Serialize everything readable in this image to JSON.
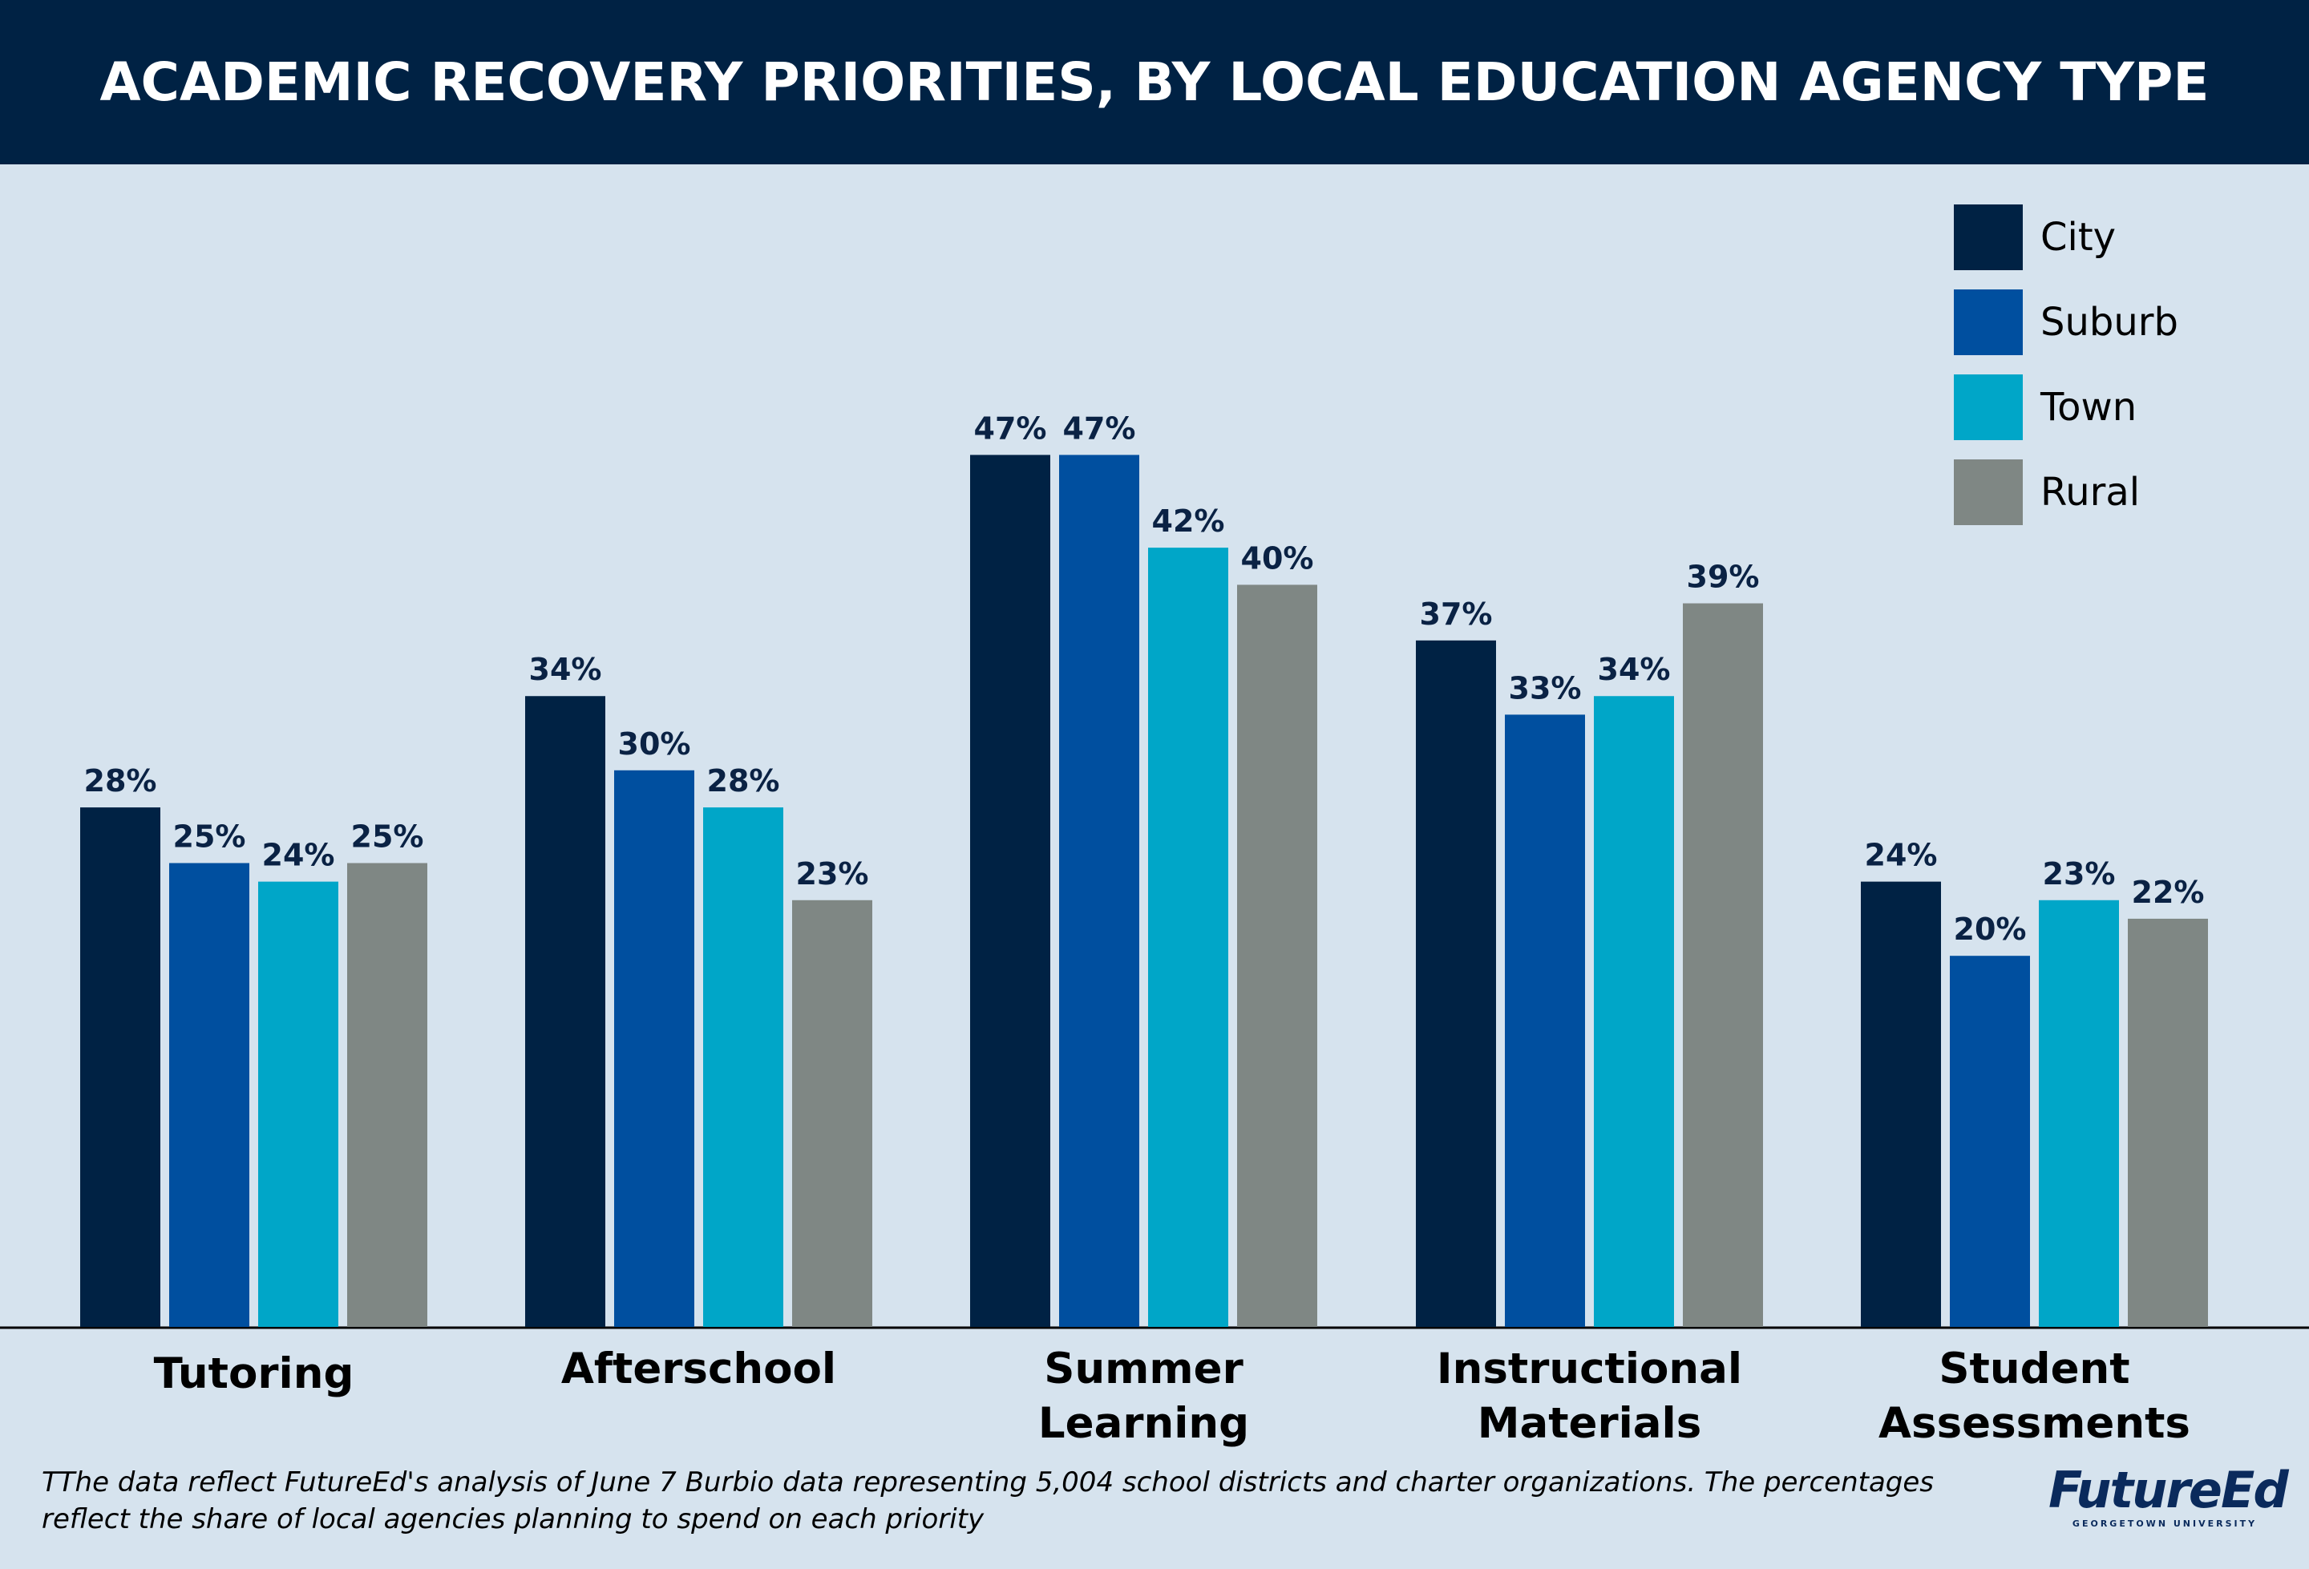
{
  "colors": {
    "background": "#d6e3ee",
    "header": "#002244",
    "city": "#002244",
    "suburb": "#004f9f",
    "town": "#00a6c8",
    "rural": "#7f8784",
    "label_text": "#0a2244"
  },
  "chart_data": {
    "type": "bar",
    "title": "ACADEMIC RECOVERY PRIORITIES, BY LOCAL EDUCATION AGENCY TYPE",
    "xlabel": "",
    "ylabel": "",
    "ylim": [
      0,
      50
    ],
    "grid": false,
    "legend_position": "top-right",
    "categories": [
      [
        "Tutoring"
      ],
      [
        "Afterschool"
      ],
      [
        "Summer",
        "Learning"
      ],
      [
        "Instructional",
        "Materials"
      ],
      [
        "Student",
        "Assessments"
      ]
    ],
    "series": [
      {
        "name": "City",
        "color": "#002244",
        "values": [
          28,
          34,
          47,
          37,
          24
        ],
        "labels": [
          "28%",
          "34%",
          "47%",
          "37%",
          "24%"
        ]
      },
      {
        "name": "Suburb",
        "color": "#004f9f",
        "values": [
          25,
          30,
          47,
          33,
          20
        ],
        "labels": [
          "25%",
          "30%",
          "47%",
          "33%",
          "20%"
        ]
      },
      {
        "name": "Town",
        "color": "#00a6c8",
        "values": [
          24,
          28,
          42,
          34,
          23
        ],
        "labels": [
          "24%",
          "28%",
          "42%",
          "34%",
          "23%"
        ]
      },
      {
        "name": "Rural",
        "color": "#7f8784",
        "values": [
          25,
          23,
          40,
          39,
          22
        ],
        "labels": [
          "25%",
          "23%",
          "40%",
          "39%",
          "22%"
        ]
      }
    ]
  },
  "footnote": "TThe data reflect FutureEd's analysis of June 7 Burbio data representing 5,004 school districts and charter organizations. The percentages reflect the share of local agencies planning to spend on each priority",
  "logo": {
    "name": "FutureEd",
    "subtitle": "GEORGETOWN UNIVERSITY"
  }
}
